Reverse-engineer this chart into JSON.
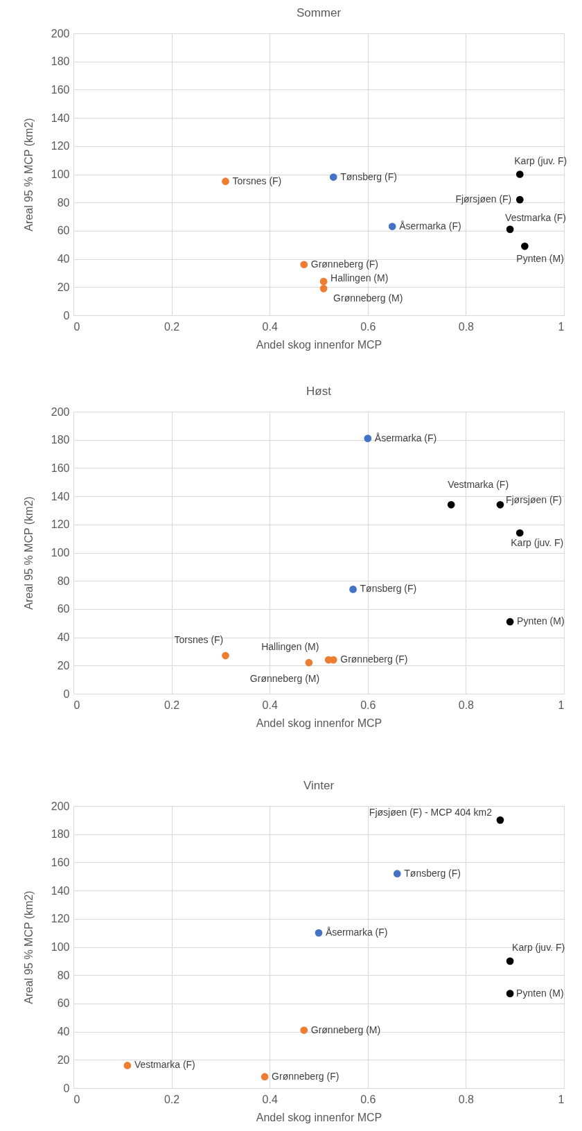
{
  "chart_data": [
    {
      "type": "scatter",
      "title": "Sommer",
      "xlabel": "Andel skog innenfor MCP",
      "ylabel": "Areal 95 % MCP (km2)",
      "xlim": [
        0,
        1
      ],
      "ylim": [
        0,
        200
      ],
      "xticks": [
        0,
        0.2,
        0.4,
        0.6,
        0.8,
        1
      ],
      "yticks": [
        0,
        20,
        40,
        60,
        80,
        100,
        120,
        140,
        160,
        180,
        200
      ],
      "grid": true,
      "marker": "circle",
      "series": [
        {
          "color": "#ed7d31",
          "x": [
            0.31,
            0.47,
            0.51,
            0.51
          ],
          "values": [
            95,
            36,
            24,
            19
          ]
        },
        {
          "color": "#4472c4",
          "x": [
            0.53,
            0.65
          ],
          "values": [
            98,
            63
          ]
        },
        {
          "color": "#000000",
          "x": [
            0.91,
            0.91,
            0.89,
            0.92
          ],
          "values": [
            100,
            82,
            61,
            49
          ]
        }
      ],
      "annotations": [
        {
          "text": "Torsnes (F)",
          "x": 0.31,
          "y": 95
        },
        {
          "text": "Tønsberg (F)",
          "x": 0.53,
          "y": 98
        },
        {
          "text": "Åsermarka (F)",
          "x": 0.65,
          "y": 63
        },
        {
          "text": "Grønneberg (F)",
          "x": 0.47,
          "y": 36
        },
        {
          "text": "Hallingen (M)",
          "x": 0.51,
          "y": 24
        },
        {
          "text": "Grønneberg (M)",
          "x": 0.51,
          "y": 19
        },
        {
          "text": "Karp (juv. F)",
          "x": 0.91,
          "y": 100
        },
        {
          "text": "Fjørsjøen (F)",
          "x": 0.91,
          "y": 82
        },
        {
          "text": "Vestmarka (F)",
          "x": 0.89,
          "y": 61
        },
        {
          "text": "Pynten (M)",
          "x": 0.92,
          "y": 49
        }
      ]
    },
    {
      "type": "scatter",
      "title": "Høst",
      "xlabel": "Andel skog innenfor MCP",
      "ylabel": "Areal 95 % MCP (km2)",
      "xlim": [
        0,
        1
      ],
      "ylim": [
        0,
        200
      ],
      "xticks": [
        0,
        0.2,
        0.4,
        0.6,
        0.8,
        1
      ],
      "yticks": [
        0,
        20,
        40,
        60,
        80,
        100,
        120,
        140,
        160,
        180,
        200
      ],
      "grid": true,
      "marker": "circle",
      "series": [
        {
          "color": "#ed7d31",
          "x": [
            0.31,
            0.52,
            0.48,
            0.53
          ],
          "values": [
            27,
            24,
            22,
            24
          ]
        },
        {
          "color": "#4472c4",
          "x": [
            0.6,
            0.57
          ],
          "values": [
            181,
            74
          ]
        },
        {
          "color": "#000000",
          "x": [
            0.77,
            0.87,
            0.91,
            0.89
          ],
          "values": [
            134,
            134,
            114,
            51
          ]
        }
      ],
      "annotations": [
        {
          "text": "Åsermarka (F)",
          "x": 0.6,
          "y": 181
        },
        {
          "text": "Vestmarka (F)",
          "x": 0.77,
          "y": 134
        },
        {
          "text": "Fjørsjøen (F)",
          "x": 0.87,
          "y": 134
        },
        {
          "text": "Karp (juv. F)",
          "x": 0.91,
          "y": 114
        },
        {
          "text": "Tønsberg (F)",
          "x": 0.57,
          "y": 74
        },
        {
          "text": "Pynten (M)",
          "x": 0.89,
          "y": 51
        },
        {
          "text": "Torsnes (F)",
          "x": 0.31,
          "y": 27
        },
        {
          "text": "Hallingen (M)",
          "x": 0.52,
          "y": 24
        },
        {
          "text": "Grønneberg (M)",
          "x": 0.48,
          "y": 22
        },
        {
          "text": "Grønneberg (F)",
          "x": 0.53,
          "y": 24
        }
      ]
    },
    {
      "type": "scatter",
      "title": "Vinter",
      "xlabel": "Andel skog innenfor MCP",
      "ylabel": "Areal 95 % MCP (km2)",
      "xlim": [
        0,
        1
      ],
      "ylim": [
        0,
        200
      ],
      "xticks": [
        0,
        0.2,
        0.4,
        0.6,
        0.8,
        1
      ],
      "yticks": [
        0,
        20,
        40,
        60,
        80,
        100,
        120,
        140,
        160,
        180,
        200
      ],
      "grid": true,
      "marker": "circle",
      "series": [
        {
          "color": "#ed7d31",
          "x": [
            0.47,
            0.11,
            0.39
          ],
          "values": [
            41,
            16,
            8
          ]
        },
        {
          "color": "#4472c4",
          "x": [
            0.66,
            0.5
          ],
          "values": [
            152,
            110
          ]
        },
        {
          "color": "#000000",
          "x": [
            0.87,
            0.89,
            0.89
          ],
          "values": [
            190,
            90,
            67
          ]
        }
      ],
      "annotations": [
        {
          "text": "Fjøsjøen (F) - MCP 404 km2",
          "x": 0.87,
          "y": 190
        },
        {
          "text": "Tønsberg (F)",
          "x": 0.66,
          "y": 152
        },
        {
          "text": "Åsermarka (F)",
          "x": 0.5,
          "y": 110
        },
        {
          "text": "Karp (juv. F)",
          "x": 0.89,
          "y": 90
        },
        {
          "text": "Pynten (M)",
          "x": 0.89,
          "y": 67
        },
        {
          "text": "Grønneberg (M)",
          "x": 0.47,
          "y": 41
        },
        {
          "text": "Vestmarka (F)",
          "x": 0.11,
          "y": 16
        },
        {
          "text": "Grønneberg (F)",
          "x": 0.39,
          "y": 8
        }
      ]
    }
  ]
}
